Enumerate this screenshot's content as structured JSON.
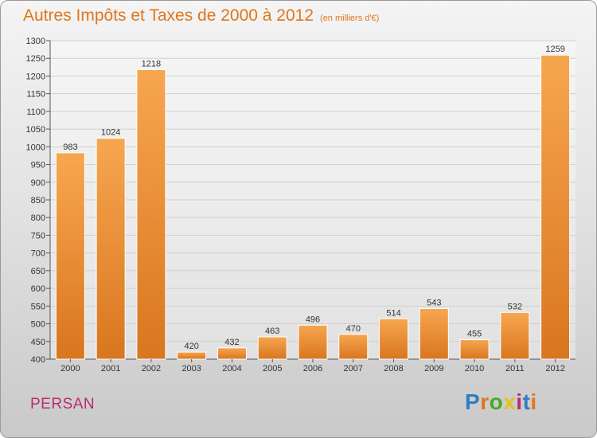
{
  "header": {
    "title": "Autres Impôts et Taxes de 2000 à 2012",
    "subtitle": "(en milliers d'€)"
  },
  "footer": {
    "commune": "PERSAN",
    "brand": "Proxiti",
    "brand_colors": [
      "#2f7fc1",
      "#e0761c",
      "#4aa82b",
      "#e2c21b",
      "#b92d6e",
      "#2f7fc1",
      "#e0761c"
    ]
  },
  "colors": {
    "bar_light": "#f7a650",
    "bar_dark": "#d9761f",
    "title": "#e0761c",
    "commune": "#b92d6e"
  },
  "chart_data": {
    "type": "bar",
    "title": "Autres Impôts et Taxes de 2000 à 2012",
    "subtitle": "(en milliers d'€)",
    "xlabel": "",
    "ylabel": "",
    "categories": [
      "2000",
      "2001",
      "2002",
      "2003",
      "2004",
      "2005",
      "2006",
      "2007",
      "2008",
      "2009",
      "2010",
      "2011",
      "2012"
    ],
    "values": [
      983,
      1024,
      1218,
      420,
      432,
      463,
      496,
      470,
      514,
      543,
      455,
      532,
      1259
    ],
    "ylim": [
      400,
      1300
    ],
    "yticks": [
      400,
      450,
      500,
      550,
      600,
      650,
      700,
      750,
      800,
      850,
      900,
      950,
      1000,
      1050,
      1100,
      1150,
      1200,
      1250,
      1300
    ],
    "grid": true,
    "legend": "none"
  }
}
